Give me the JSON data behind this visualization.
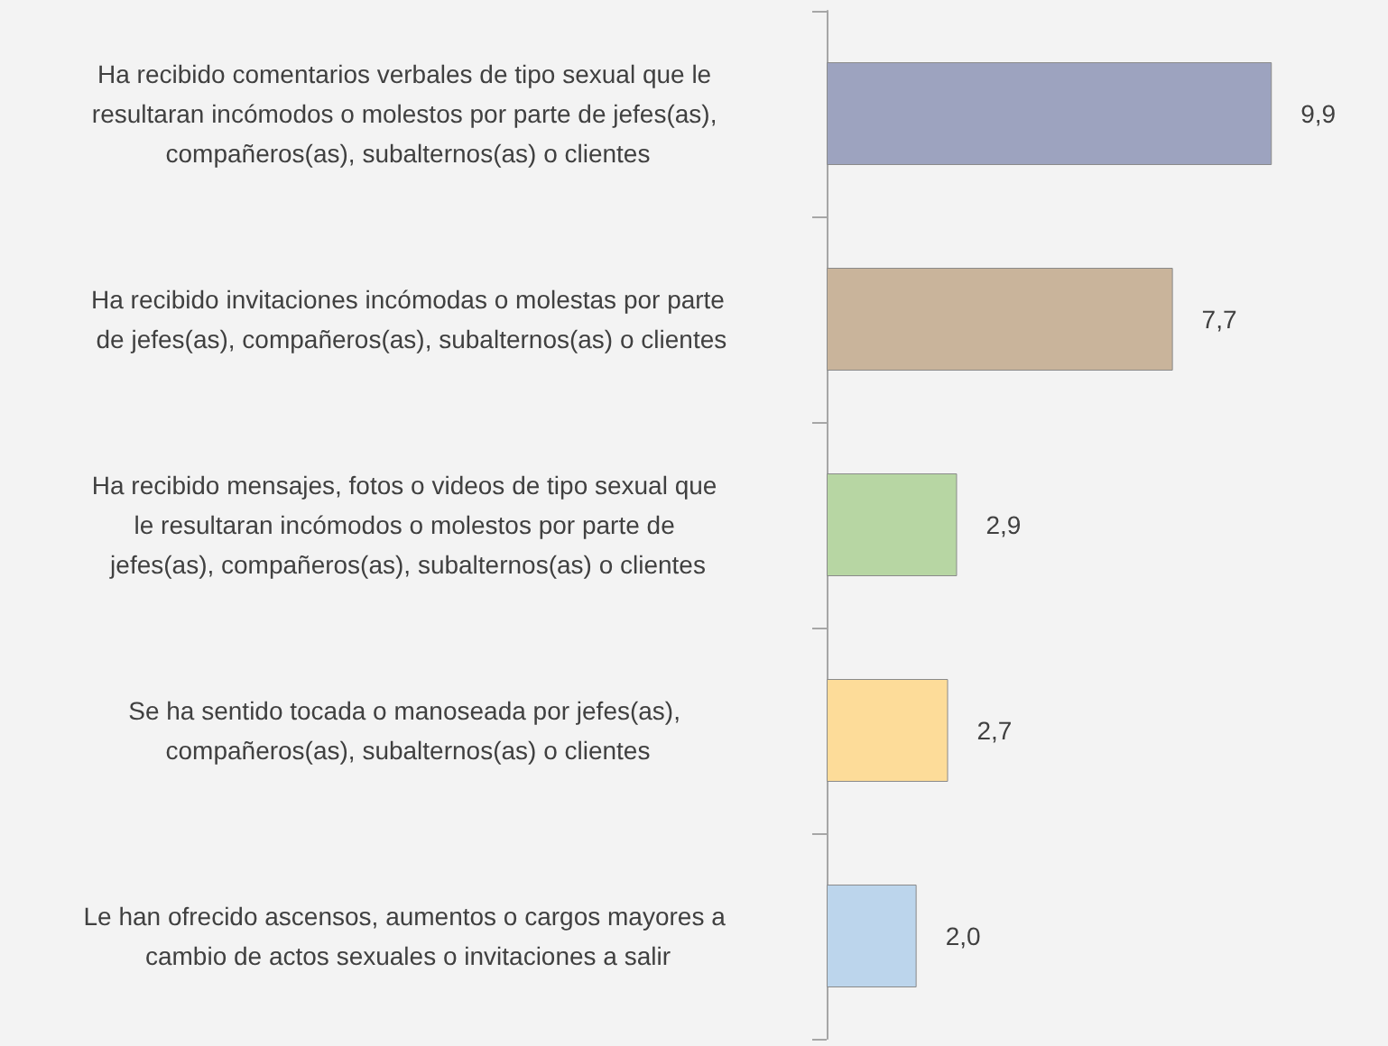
{
  "chart_data": {
    "type": "bar",
    "orientation": "horizontal",
    "relative": false,
    "categories": [
      "Ha recibido comentarios verbales de tipo sexual que le resultaran incómodos o molestos por parte de jefes(as), compañeros(as), subalternos(as) o clientes",
      "Ha recibido invitaciones incómodas o molestas por parte de jefes(as), compañeros(as), subalternos(as) o clientes",
      "Ha recibido mensajes, fotos o videos de tipo sexual que le resultaran incómodos o molestos por parte de jefes(as), compañeros(as), subalternos(as) o clientes",
      "Se ha sentido tocada o manoseada por jefes(as), compañeros(as), subalternos(as) o clientes",
      "Le han ofrecido ascensos, aumentos o cargos mayores a cambio de actos sexuales o invitaciones a salir"
    ],
    "values": [
      9.9,
      7.7,
      2.9,
      2.7,
      2.0
    ],
    "value_labels": [
      "9,9",
      "7,7",
      "2,9",
      "2,7",
      "2,0"
    ],
    "colors": [
      "#9da3bf",
      "#c9b49b",
      "#b7d6a3",
      "#fddc99",
      "#bcd5ec"
    ]
  }
}
